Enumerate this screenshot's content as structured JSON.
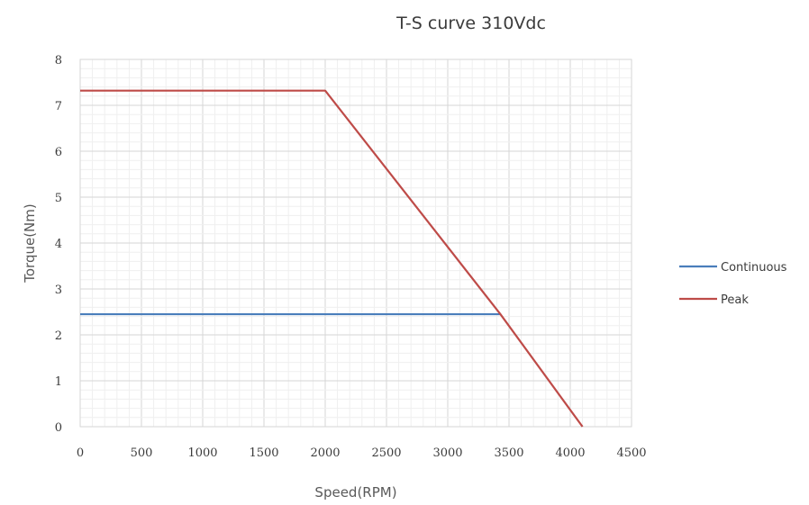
{
  "chart_data": {
    "type": "line",
    "title": "T-S curve 310Vdc",
    "xlabel": "Speed(RPM)",
    "ylabel": "Torque(Nm)",
    "xlim": [
      0,
      4500
    ],
    "ylim": [
      0,
      8
    ],
    "x_ticks": [
      0,
      500,
      1000,
      1500,
      2000,
      2500,
      3000,
      3500,
      4000,
      4500
    ],
    "y_ticks": [
      0,
      1,
      2,
      3,
      4,
      5,
      6,
      7,
      8
    ],
    "grid": true,
    "legend_position": "right",
    "series": [
      {
        "name": "Continuous",
        "color": "#4a7ebb",
        "points": [
          [
            0,
            2.45
          ],
          [
            3430,
            2.45
          ]
        ]
      },
      {
        "name": "Peak",
        "color": "#be4b48",
        "points": [
          [
            0,
            7.32
          ],
          [
            2000,
            7.32
          ],
          [
            3430,
            2.45
          ],
          [
            4100,
            0
          ]
        ]
      }
    ]
  }
}
